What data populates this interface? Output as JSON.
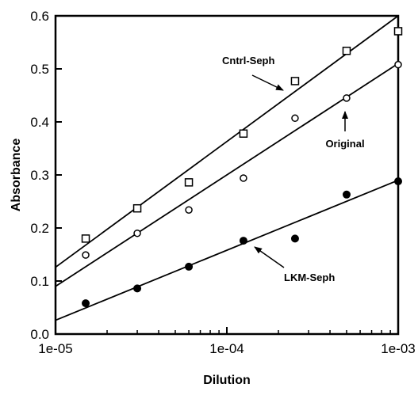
{
  "chart_data": {
    "type": "scatter",
    "xlabel": "Dilution",
    "ylabel": "Absorbance",
    "xscale": "log",
    "xlim": [
      1e-05,
      0.001
    ],
    "ylim": [
      0.0,
      0.6
    ],
    "x_ticks": [
      1e-05,
      0.0001,
      0.001
    ],
    "x_tick_labels": [
      "1e-05",
      "1e-04",
      "1e-03"
    ],
    "y_ticks": [
      0.0,
      0.1,
      0.2,
      0.3,
      0.4,
      0.5,
      0.6
    ],
    "y_tick_labels": [
      "0.0",
      "0.1",
      "0.2",
      "0.3",
      "0.4",
      "0.5",
      "0.6"
    ],
    "grid": false,
    "series": [
      {
        "name": "Cntrl-Seph",
        "marker": "open-square",
        "x": [
          1.5e-05,
          3e-05,
          6e-05,
          0.000125,
          0.00025,
          0.0005,
          0.001
        ],
        "y": [
          0.18,
          0.237,
          0.286,
          0.378,
          0.477,
          0.534,
          0.571
        ],
        "fit": {
          "x": [
            1e-05,
            0.001
          ],
          "y": [
            0.126,
            0.6
          ]
        }
      },
      {
        "name": "Original",
        "marker": "open-circle",
        "x": [
          1.5e-05,
          3e-05,
          6e-05,
          0.000125,
          0.00025,
          0.0005,
          0.001
        ],
        "y": [
          0.149,
          0.19,
          0.234,
          0.294,
          0.407,
          0.445,
          0.508
        ],
        "fit": {
          "x": [
            1e-05,
            0.001
          ],
          "y": [
            0.09,
            0.51
          ]
        }
      },
      {
        "name": "LKM-Seph",
        "marker": "filled-circle",
        "x": [
          1.5e-05,
          3e-05,
          6e-05,
          0.000125,
          0.00025,
          0.0005,
          0.001
        ],
        "y": [
          0.058,
          0.086,
          0.127,
          0.176,
          0.18,
          0.263,
          0.288
        ],
        "fit": {
          "x": [
            1e-05,
            0.001
          ],
          "y": [
            0.026,
            0.29
          ]
        }
      }
    ],
    "annotations": [
      {
        "text": "Cntrl-Seph",
        "series": "Cntrl-Seph"
      },
      {
        "text": "Original",
        "series": "Original"
      },
      {
        "text": "LKM-Seph",
        "series": "LKM-Seph"
      }
    ]
  }
}
